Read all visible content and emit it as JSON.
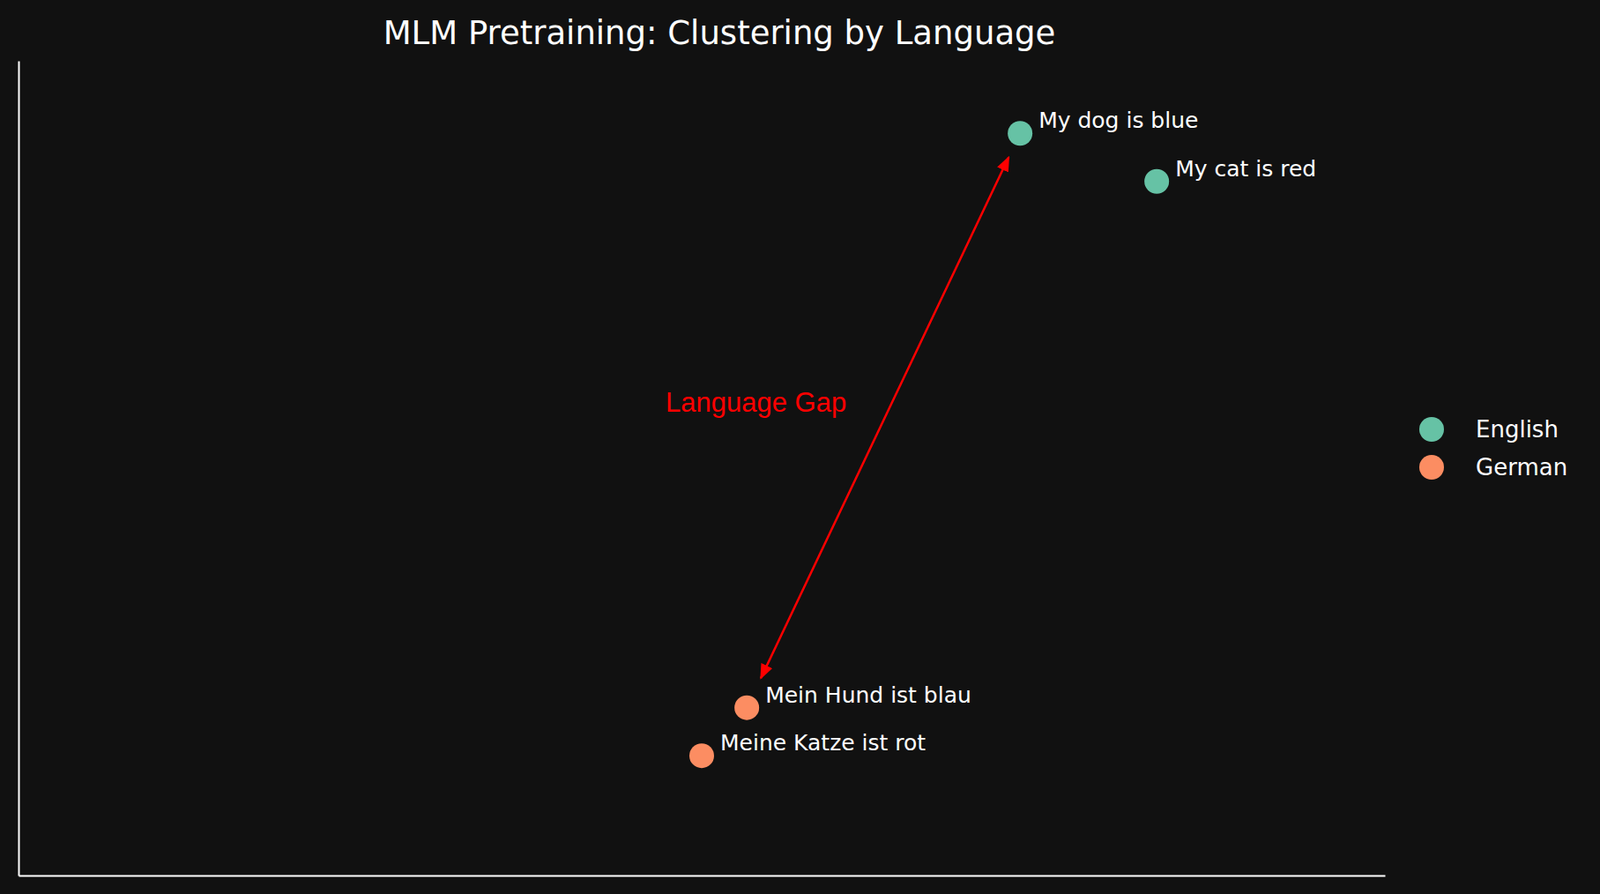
{
  "chart_data": {
    "type": "scatter",
    "title": "MLM Pretraining: Clustering by Language",
    "series": [
      {
        "name": "English",
        "color": "#66c2a5",
        "x": [
          7.33,
          8.33
        ],
        "values": [
          9.11,
          8.52
        ],
        "labels": [
          "My dog is blue",
          "My cat is red"
        ]
      },
      {
        "name": "German",
        "color": "#fc8d62",
        "x": [
          5.33,
          5.0
        ],
        "values": [
          2.06,
          1.47
        ],
        "labels": [
          "Mein Hund ist blau",
          "Meine Katze ist rot"
        ]
      }
    ],
    "xlim": [
      0,
      10
    ],
    "ylim": [
      0,
      10
    ],
    "tick_labels": false,
    "legend": "right",
    "annotations": [
      {
        "text": "Language Gap",
        "color": "#ff0000"
      }
    ]
  }
}
